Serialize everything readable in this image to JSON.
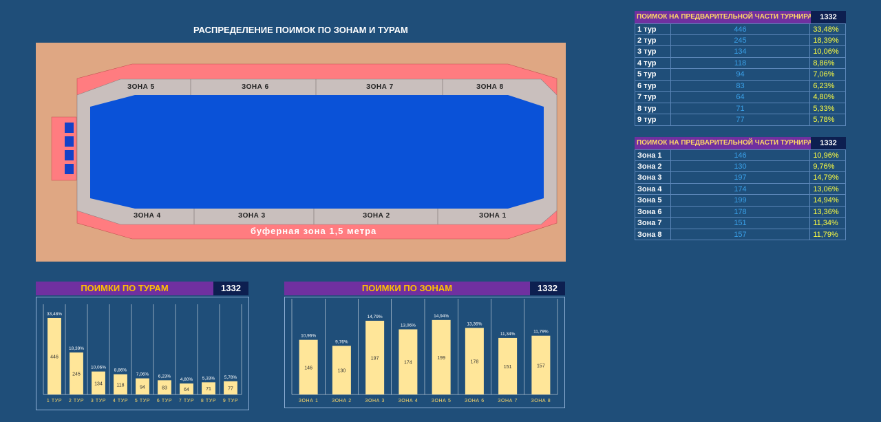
{
  "main_title": "РАСПРЕДЕЛЕНИЕ ПОИМОК ПО ЗОНАМ И ТУРАМ",
  "scheme": {
    "top_zones": [
      "ЗОНА 5",
      "ЗОНА 6",
      "ЗОНА 7",
      "ЗОНА 8"
    ],
    "bottom_zones": [
      "ЗОНА 4",
      "ЗОНА 3",
      "ЗОНА 2",
      "ЗОНА 1"
    ],
    "buffer_label": "буферная зона 1,5 метра",
    "colors": {
      "ground": "#dfa783",
      "buffer": "#ff7c80",
      "zones": "#c9bfbd",
      "water": "#0a52d8",
      "dock": "#1342c8"
    }
  },
  "tours_table": {
    "title": "ПОИМОК НА ПРЕДВАРИТЕЛЬНОЙ ЧАСТИ ТУРНИРА",
    "total": "1332",
    "rows": [
      {
        "label": "1 тур",
        "value": "446",
        "pct": "33,48%"
      },
      {
        "label": "2 тур",
        "value": "245",
        "pct": "18,39%"
      },
      {
        "label": "3 тур",
        "value": "134",
        "pct": "10,06%"
      },
      {
        "label": "4 тур",
        "value": "118",
        "pct": "8,86%"
      },
      {
        "label": "5 тур",
        "value": "94",
        "pct": "7,06%"
      },
      {
        "label": "6 тур",
        "value": "83",
        "pct": "6,23%"
      },
      {
        "label": "7 тур",
        "value": "64",
        "pct": "4,80%"
      },
      {
        "label": "8 тур",
        "value": "71",
        "pct": "5,33%"
      },
      {
        "label": "9 тур",
        "value": "77",
        "pct": "5,78%"
      }
    ]
  },
  "zones_table": {
    "title": "ПОИМОК НА ПРЕДВАРИТЕЛЬНОЙ ЧАСТИ ТУРНИРА",
    "total": "1332",
    "rows": [
      {
        "label": "Зона 1",
        "value": "146",
        "pct": "10,96%"
      },
      {
        "label": "Зона 2",
        "value": "130",
        "pct": "9,76%"
      },
      {
        "label": "Зона 3",
        "value": "197",
        "pct": "14,79%"
      },
      {
        "label": "Зона 4",
        "value": "174",
        "pct": "13,06%"
      },
      {
        "label": "Зона 5",
        "value": "199",
        "pct": "14,94%"
      },
      {
        "label": "Зона 6",
        "value": "178",
        "pct": "13,36%"
      },
      {
        "label": "Зона 7",
        "value": "151",
        "pct": "11,34%"
      },
      {
        "label": "Зона 8",
        "value": "157",
        "pct": "11,79%"
      }
    ]
  },
  "chart_data": [
    {
      "type": "bar",
      "title": "ПОИМКИ ПО ТУРАМ",
      "total": "1332",
      "categories": [
        "1 ТУР",
        "2 ТУР",
        "3 ТУР",
        "4 ТУР",
        "5 ТУР",
        "6 ТУР",
        "7 ТУР",
        "8 ТУР",
        "9 ТУР"
      ],
      "values": [
        446,
        245,
        134,
        118,
        94,
        83,
        64,
        71,
        77
      ],
      "pct_labels": [
        "33,48%",
        "18,39%",
        "10,06%",
        "8,86%",
        "7,06%",
        "6,23%",
        "4,80%",
        "5,33%",
        "5,78%"
      ],
      "ylim": [
        0,
        470
      ],
      "bar_color": "#ffe699"
    },
    {
      "type": "bar",
      "title": "ПОИМКИ ПО ЗОНАМ",
      "total": "1332",
      "categories": [
        "ЗОНА 1",
        "ЗОНА 2",
        "ЗОНА 3",
        "ЗОНА 4",
        "ЗОНА 5",
        "ЗОНА 6",
        "ЗОНА 7",
        "ЗОНА 8"
      ],
      "values": [
        146,
        130,
        197,
        174,
        199,
        178,
        151,
        157
      ],
      "pct_labels": [
        "10,96%",
        "9,76%",
        "14,79%",
        "13,06%",
        "14,94%",
        "13,36%",
        "11,34%",
        "11,79%"
      ],
      "ylim": [
        0,
        230
      ],
      "bar_color": "#ffe699"
    }
  ]
}
